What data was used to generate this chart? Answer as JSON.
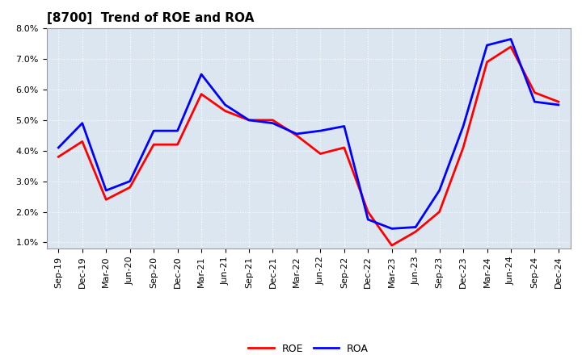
{
  "title": "[8700]  Trend of ROE and ROA",
  "labels": [
    "Sep-19",
    "Dec-19",
    "Mar-20",
    "Jun-20",
    "Sep-20",
    "Dec-20",
    "Mar-21",
    "Jun-21",
    "Sep-21",
    "Dec-21",
    "Mar-22",
    "Jun-22",
    "Sep-22",
    "Dec-22",
    "Mar-23",
    "Jun-23",
    "Sep-23",
    "Dec-23",
    "Mar-24",
    "Jun-24",
    "Sep-24",
    "Dec-24"
  ],
  "ROE": [
    3.8,
    4.3,
    2.4,
    2.8,
    4.2,
    4.2,
    5.85,
    5.3,
    5.0,
    5.0,
    4.5,
    3.9,
    4.1,
    2.0,
    0.9,
    1.35,
    2.0,
    4.1,
    6.9,
    7.4,
    5.9,
    5.6
  ],
  "ROA": [
    4.1,
    4.9,
    2.7,
    3.0,
    4.65,
    4.65,
    6.5,
    5.5,
    5.0,
    4.9,
    4.55,
    4.65,
    4.8,
    1.75,
    1.45,
    1.5,
    2.7,
    4.8,
    7.45,
    7.65,
    5.6,
    5.5
  ],
  "roe_color": "#ff0000",
  "roa_color": "#0000ff",
  "line_width": 2.0,
  "ylim": [
    0.8,
    8.0
  ],
  "yticks": [
    1.0,
    2.0,
    3.0,
    4.0,
    5.0,
    6.0,
    7.0,
    8.0
  ],
  "bg_color": "#ffffff",
  "plot_bg_color": "#dce6f1",
  "grid_color": "#ffffff",
  "title_fontsize": 11,
  "tick_fontsize": 8,
  "legend_fontsize": 9
}
